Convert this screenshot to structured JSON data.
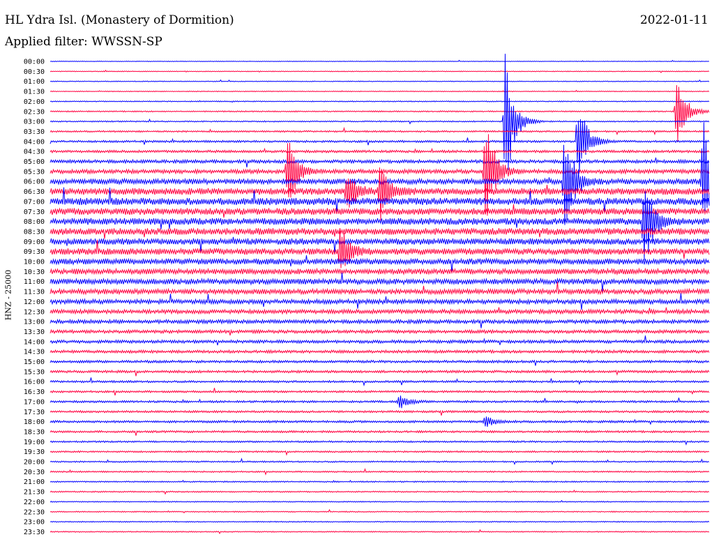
{
  "header": {
    "title": "HL Ydra Isl. (Monastery of Dormition)",
    "date": "2022-01-11",
    "filter": "Applied filter: WWSSN-SP"
  },
  "axis": {
    "ylabel": "HNZ - 25000"
  },
  "colors": {
    "even_trace": "#0000ff",
    "odd_trace": "#ff0040",
    "background": "#ffffff"
  },
  "chart_data": {
    "type": "line",
    "description_type": "helicorder",
    "grid": false,
    "legend": "none",
    "x_minutes_per_line": 30,
    "row_labels": [
      "00:00",
      "00:30",
      "01:00",
      "01:30",
      "02:00",
      "02:30",
      "03:00",
      "03:30",
      "04:00",
      "04:30",
      "05:00",
      "05:30",
      "06:00",
      "06:30",
      "07:00",
      "07:30",
      "08:00",
      "08:30",
      "09:00",
      "09:30",
      "10:00",
      "10:30",
      "11:00",
      "11:30",
      "12:00",
      "12:30",
      "13:00",
      "13:30",
      "14:00",
      "14:30",
      "15:00",
      "15:30",
      "16:00",
      "16:30",
      "17:00",
      "17:30",
      "18:00",
      "18:30",
      "19:00",
      "19:30",
      "20:00",
      "20:30",
      "21:00",
      "21:30",
      "22:00",
      "22:30",
      "23:00",
      "23:30"
    ],
    "noise_amplitude": [
      0.3,
      0.4,
      0.4,
      0.4,
      0.5,
      0.6,
      0.6,
      0.8,
      1.0,
      1.2,
      1.6,
      2.0,
      2.6,
      3.2,
      3.4,
      3.2,
      3.2,
      3.2,
      3.0,
      3.0,
      2.8,
      2.6,
      2.6,
      2.4,
      2.2,
      2.0,
      1.8,
      1.6,
      1.5,
      1.4,
      1.2,
      1.2,
      1.0,
      1.0,
      1.0,
      1.0,
      1.1,
      1.0,
      0.8,
      0.8,
      0.7,
      0.7,
      0.6,
      0.6,
      0.5,
      0.5,
      0.5,
      0.5
    ],
    "events": [
      {
        "row": 11,
        "x": 0.36,
        "amplitude": 60
      },
      {
        "row": 13,
        "x": 0.45,
        "amplitude": 35
      },
      {
        "row": 6,
        "x": 0.69,
        "amplitude": 110
      },
      {
        "row": 8,
        "x": 0.8,
        "amplitude": 70
      },
      {
        "row": 5,
        "x": 0.95,
        "amplitude": 60
      },
      {
        "row": 13,
        "x": 0.5,
        "amplitude": 45
      },
      {
        "row": 11,
        "x": 0.66,
        "amplitude": 90
      },
      {
        "row": 12,
        "x": 0.78,
        "amplitude": 90
      },
      {
        "row": 16,
        "x": 0.9,
        "amplitude": 75
      },
      {
        "row": 12,
        "x": 0.99,
        "amplitude": 100
      },
      {
        "row": 19,
        "x": 0.44,
        "amplitude": 40
      },
      {
        "row": 34,
        "x": 0.53,
        "amplitude": 12
      },
      {
        "row": 36,
        "x": 0.66,
        "amplitude": 10
      }
    ]
  }
}
